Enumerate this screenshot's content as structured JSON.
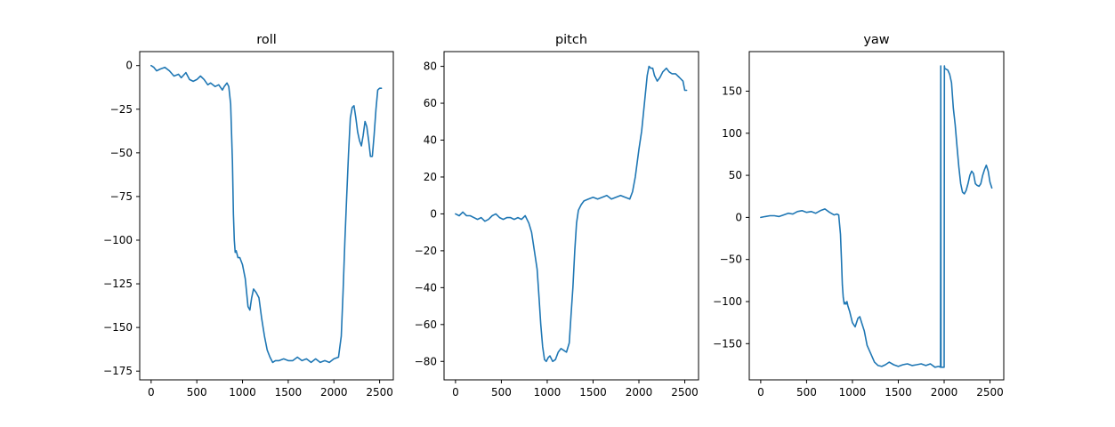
{
  "colors": {
    "series": "#1f77b4",
    "axes": "#000000",
    "background": "#ffffff"
  },
  "chart_data": [
    {
      "type": "line",
      "title": "roll",
      "xlim": [
        -125,
        2650
      ],
      "ylim": [
        -180,
        8
      ],
      "xticks": [
        0,
        500,
        1000,
        1500,
        2000,
        2500
      ],
      "yticks": [
        0,
        -25,
        -50,
        -75,
        -100,
        -125,
        -150,
        -175
      ],
      "series": [
        {
          "x": [
            0,
            30,
            60,
            100,
            150,
            200,
            250,
            300,
            330,
            380,
            420,
            460,
            500,
            540,
            580,
            620,
            650,
            700,
            740,
            780,
            800,
            830,
            850,
            870,
            890,
            900,
            910,
            920,
            930,
            950,
            970,
            1000,
            1030,
            1060,
            1080,
            1100,
            1120,
            1150,
            1180,
            1210,
            1240,
            1270,
            1300,
            1330,
            1360,
            1400,
            1450,
            1500,
            1550,
            1600,
            1650,
            1700,
            1750,
            1800,
            1850,
            1900,
            1950,
            2000,
            2050,
            2080,
            2100,
            2120,
            2140,
            2160,
            2180,
            2200,
            2220,
            2240,
            2260,
            2280,
            2300,
            2320,
            2340,
            2360,
            2380,
            2400,
            2420,
            2440,
            2460,
            2480,
            2500,
            2520
          ],
          "y": [
            0,
            -1,
            -3,
            -2,
            -1,
            -3,
            -6,
            -5,
            -7,
            -4,
            -8,
            -9,
            -8,
            -6,
            -8,
            -11,
            -10,
            -12,
            -11,
            -14,
            -12,
            -10,
            -12,
            -22,
            -55,
            -85,
            -100,
            -107,
            -106,
            -110,
            -110,
            -114,
            -122,
            -138,
            -140,
            -133,
            -128,
            -130,
            -133,
            -145,
            -155,
            -163,
            -167,
            -170,
            -169,
            -169,
            -168,
            -169,
            -169,
            -167,
            -169,
            -168,
            -170,
            -168,
            -170,
            -169,
            -170,
            -168,
            -167,
            -155,
            -130,
            -100,
            -75,
            -50,
            -30,
            -24,
            -23,
            -30,
            -38,
            -43,
            -46,
            -40,
            -32,
            -35,
            -43,
            -52,
            -52,
            -40,
            -25,
            -14,
            -13,
            -13
          ]
        }
      ]
    },
    {
      "type": "line",
      "title": "pitch",
      "xlim": [
        -125,
        2650
      ],
      "ylim": [
        -90,
        88
      ],
      "xticks": [
        0,
        500,
        1000,
        1500,
        2000,
        2500
      ],
      "yticks": [
        80,
        60,
        40,
        20,
        0,
        -20,
        -40,
        -60,
        -80
      ],
      "series": [
        {
          "x": [
            0,
            40,
            80,
            120,
            160,
            200,
            240,
            280,
            320,
            360,
            400,
            440,
            480,
            520,
            560,
            600,
            640,
            680,
            720,
            760,
            800,
            830,
            860,
            890,
            910,
            930,
            950,
            970,
            990,
            1010,
            1030,
            1060,
            1090,
            1120,
            1150,
            1180,
            1210,
            1240,
            1260,
            1280,
            1300,
            1320,
            1340,
            1370,
            1400,
            1450,
            1500,
            1550,
            1600,
            1650,
            1700,
            1750,
            1800,
            1850,
            1900,
            1930,
            1960,
            2000,
            2030,
            2060,
            2090,
            2110,
            2130,
            2150,
            2170,
            2200,
            2230,
            2260,
            2300,
            2330,
            2360,
            2400,
            2440,
            2480,
            2500,
            2520
          ],
          "y": [
            0,
            -1,
            1,
            -1,
            -1,
            -2,
            -3,
            -2,
            -4,
            -3,
            -1,
            0,
            -2,
            -3,
            -2,
            -2,
            -3,
            -2,
            -3,
            -1,
            -5,
            -10,
            -20,
            -30,
            -45,
            -60,
            -72,
            -79,
            -80,
            -78,
            -77,
            -80,
            -79,
            -75,
            -73,
            -74,
            -75,
            -70,
            -55,
            -40,
            -20,
            -5,
            2,
            5,
            7,
            8,
            9,
            8,
            9,
            10,
            8,
            9,
            10,
            9,
            8,
            12,
            20,
            35,
            45,
            60,
            75,
            80,
            79,
            79,
            75,
            72,
            74,
            77,
            79,
            77,
            76,
            76,
            74,
            72,
            67,
            67
          ]
        }
      ]
    },
    {
      "type": "line",
      "title": "yaw",
      "xlim": [
        -125,
        2650
      ],
      "ylim": [
        -193,
        197
      ],
      "xticks": [
        0,
        500,
        1000,
        1500,
        2000,
        2500
      ],
      "yticks": [
        150,
        100,
        50,
        0,
        -50,
        -100,
        -150
      ],
      "series": [
        {
          "x": [
            0,
            50,
            100,
            150,
            200,
            250,
            300,
            350,
            400,
            450,
            500,
            550,
            600,
            650,
            700,
            750,
            800,
            830,
            850,
            870,
            880,
            890,
            900,
            910,
            920,
            930,
            940,
            950,
            970,
            1000,
            1030,
            1060,
            1080,
            1100,
            1130,
            1160,
            1200,
            1240,
            1280,
            1320,
            1360,
            1400,
            1450,
            1500,
            1550,
            1600,
            1650,
            1700,
            1750,
            1800,
            1850,
            1900,
            1940,
            1960,
            1963,
            1966,
            1990,
            2000,
            2003,
            2006,
            2040,
            2060,
            2080,
            2100,
            2120,
            2140,
            2160,
            2180,
            2200,
            2220,
            2240,
            2260,
            2280,
            2300,
            2320,
            2340,
            2360,
            2380,
            2400,
            2420,
            2440,
            2460,
            2480,
            2500,
            2520
          ],
          "y": [
            0,
            1,
            2,
            2,
            1,
            3,
            5,
            4,
            7,
            8,
            6,
            7,
            5,
            8,
            10,
            6,
            3,
            4,
            3,
            -20,
            -50,
            -80,
            -95,
            -103,
            -101,
            -103,
            -100,
            -105,
            -112,
            -125,
            -130,
            -120,
            -118,
            -125,
            -135,
            -152,
            -162,
            -172,
            -176,
            -177,
            -175,
            -172,
            -175,
            -177,
            -175,
            -174,
            -176,
            -175,
            -174,
            -176,
            -174,
            -178,
            -177,
            -178,
            180,
            -178,
            -178,
            -178,
            180,
            177,
            175,
            170,
            160,
            130,
            110,
            85,
            60,
            40,
            30,
            28,
            32,
            40,
            50,
            55,
            52,
            40,
            38,
            37,
            40,
            50,
            57,
            62,
            55,
            42,
            35
          ]
        }
      ]
    }
  ]
}
